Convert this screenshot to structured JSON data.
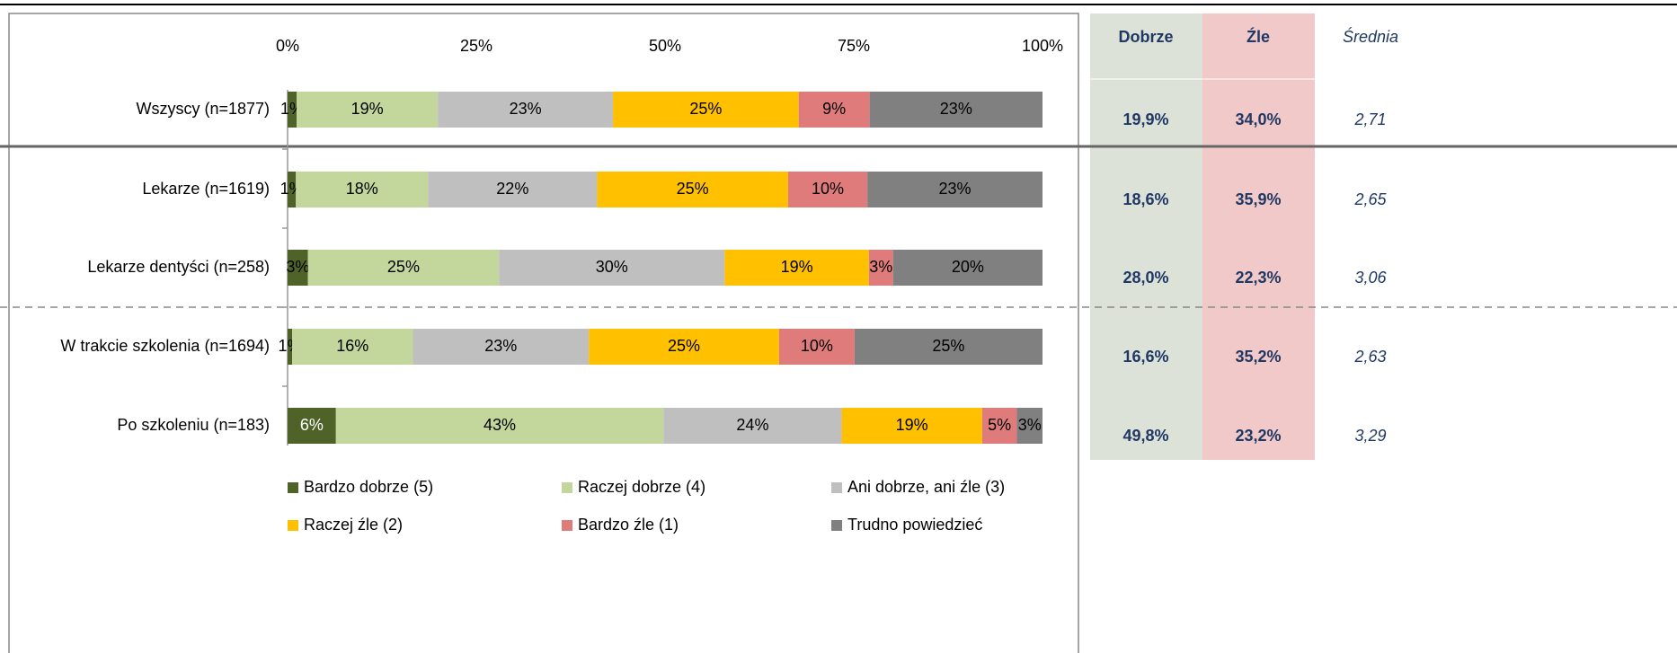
{
  "chart_data": {
    "type": "bar",
    "orientation": "horizontal",
    "stacked": true,
    "categories": [
      "Wszyscy (n=1877)",
      "Lekarze (n=1619)",
      "Lekarze dentyści (n=258)",
      "W trakcie szkolenia (n=1694)",
      "Po szkoleniu (n=183)"
    ],
    "series": [
      {
        "name": "Bardzo dobrze (5)",
        "color": "#4f6228",
        "values": [
          1.2,
          1.1,
          2.7,
          0.6,
          6.4
        ],
        "value_labels": [
          "1%",
          "1%",
          "3%",
          "1%",
          "6%"
        ]
      },
      {
        "name": "Raczej dobrze (4)",
        "color": "#c3d69b",
        "values": [
          18.7,
          17.5,
          25.3,
          16.0,
          43.4
        ],
        "value_labels": [
          "19%",
          "18%",
          "25%",
          "16%",
          "43%"
        ]
      },
      {
        "name": "Ani dobrze, ani źle (3)",
        "color": "#bfbfbf",
        "values": [
          23.2,
          22.4,
          29.9,
          23.3,
          23.6
        ],
        "value_labels": [
          "23%",
          "22%",
          "30%",
          "23%",
          "24%"
        ]
      },
      {
        "name": "Raczej źle (2)",
        "color": "#ffc000",
        "values": [
          24.6,
          25.3,
          19.1,
          25.2,
          18.6
        ],
        "value_labels": [
          "25%",
          "25%",
          "19%",
          "25%",
          "19%"
        ]
      },
      {
        "name": "Bardzo źle (1)",
        "color": "#e07b7b",
        "values": [
          9.4,
          10.5,
          3.2,
          10.0,
          4.6
        ],
        "value_labels": [
          "9%",
          "10%",
          "3%",
          "10%",
          "5%"
        ]
      },
      {
        "name": "Trudno powiedzieć",
        "color": "#808080",
        "values": [
          22.9,
          23.2,
          19.8,
          24.9,
          3.4
        ],
        "value_labels": [
          "23%",
          "23%",
          "20%",
          "25%",
          "3%"
        ]
      }
    ],
    "xlim": [
      0,
      100
    ],
    "xticks": [
      {
        "value": 0,
        "label": "0%"
      },
      {
        "value": 25,
        "label": "25%"
      },
      {
        "value": 50,
        "label": "50%"
      },
      {
        "value": 75,
        "label": "75%"
      },
      {
        "value": 100,
        "label": "100%"
      }
    ]
  },
  "table": {
    "columns": [
      "Dobrze",
      "Źle",
      "Średnia"
    ],
    "rows": [
      [
        "19,9%",
        "34,0%",
        "2,71"
      ],
      [
        "18,6%",
        "35,9%",
        "2,65"
      ],
      [
        "28,0%",
        "22,3%",
        "3,06"
      ],
      [
        "16,6%",
        "35,2%",
        "2,63"
      ],
      [
        "49,8%",
        "23,2%",
        "3,29"
      ]
    ]
  }
}
